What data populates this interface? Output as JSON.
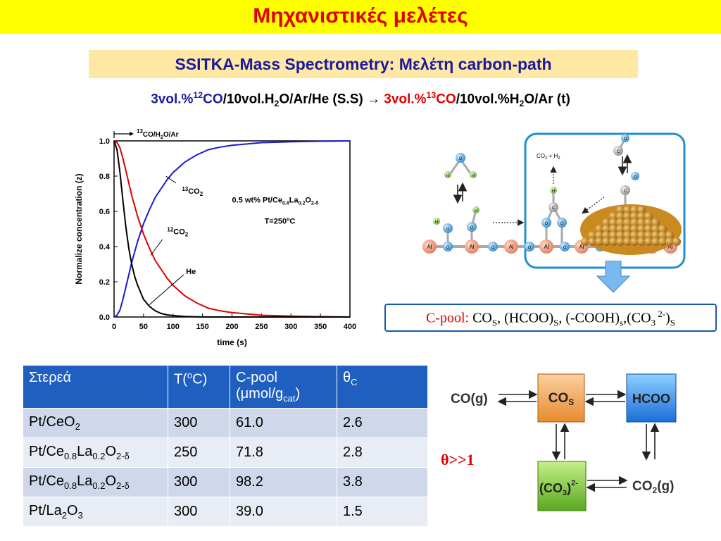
{
  "title": "Μηχανιστικές μελέτες",
  "subtitle": "SSITKA-Mass Spectrometry: Μελέτη carbon-path",
  "conditions": {
    "feed1_prefix": "3vol.%",
    "feed1_iso": "12",
    "feed1_gas": "CO",
    "feed1_rest": "/10vol.H",
    "feed1_h2o_sub": "2",
    "feed1_tail": "O/Ar/He (S.S)",
    "arrow": "→",
    "feed2_prefix": "3vol.%",
    "feed2_iso": "13",
    "feed2_gas": "CO",
    "feed2_rest": "/10vol.%H",
    "feed2_h2o_sub": "2",
    "feed2_tail": "O/Ar (t)"
  },
  "chart_data": {
    "type": "line",
    "switch_label": "CO/H2O/Ar",
    "switch_label_sup": "13",
    "switch_label_text": "CO/H",
    "switch_label_sub": "2",
    "switch_label_tail": "O/Ar",
    "xlabel": "time (s)",
    "ylabel": "Normalize concentration (z)",
    "xlim": [
      0,
      400
    ],
    "ylim": [
      0,
      1
    ],
    "xticks": [
      "0",
      "50",
      "100",
      "150",
      "200",
      "250",
      "300",
      "350",
      "400"
    ],
    "yticks": [
      "0.0",
      "0.2",
      "0.4",
      "0.6",
      "0.8",
      "1.0"
    ],
    "catalyst_label": "0.5 wt% Pt/Ce",
    "catalyst_sub1": "0.8",
    "catalyst_mid": "La",
    "catalyst_sub2": "0.2",
    "catalyst_o": "O",
    "catalyst_sub3": "2-δ",
    "temperature_label": "T=250",
    "temperature_unit": "C",
    "temperature_deg": "o",
    "series": [
      {
        "name": "CO2",
        "label_sup": "13",
        "label_base": "CO",
        "label_sub": "2",
        "color": "#1a1ad0",
        "x": [
          0,
          5,
          10,
          15,
          20,
          30,
          40,
          50,
          60,
          70,
          80,
          90,
          100,
          120,
          140,
          160,
          180,
          200,
          250,
          300,
          350,
          400
        ],
        "y": [
          0,
          0.01,
          0.04,
          0.1,
          0.17,
          0.31,
          0.43,
          0.53,
          0.61,
          0.68,
          0.73,
          0.78,
          0.82,
          0.88,
          0.92,
          0.95,
          0.965,
          0.975,
          0.99,
          0.995,
          0.998,
          1.0
        ]
      },
      {
        "name": "CO2",
        "label_sup": "12",
        "label_base": "CO",
        "label_sub": "2",
        "color": "#e00000",
        "x": [
          0,
          5,
          10,
          15,
          20,
          30,
          40,
          50,
          60,
          70,
          80,
          90,
          100,
          120,
          140,
          160,
          180,
          200,
          250,
          300,
          350,
          400
        ],
        "y": [
          1.0,
          0.99,
          0.96,
          0.9,
          0.83,
          0.69,
          0.57,
          0.47,
          0.39,
          0.32,
          0.27,
          0.22,
          0.18,
          0.12,
          0.08,
          0.05,
          0.035,
          0.025,
          0.01,
          0.005,
          0.002,
          0
        ]
      },
      {
        "name": "He",
        "label_sup": "",
        "label_base": "He",
        "label_sub": "",
        "color": "#000000",
        "x": [
          0,
          5,
          10,
          15,
          20,
          25,
          30,
          35,
          40,
          50,
          60,
          70,
          80,
          90,
          100,
          120,
          140,
          160,
          200,
          250,
          300,
          400
        ],
        "y": [
          1.0,
          0.95,
          0.82,
          0.66,
          0.51,
          0.39,
          0.3,
          0.23,
          0.18,
          0.1,
          0.06,
          0.035,
          0.02,
          0.012,
          0.008,
          0.003,
          0.001,
          0,
          0,
          0,
          0,
          0
        ]
      }
    ]
  },
  "mechanism": {
    "atoms_al": "Al",
    "atoms_o": "O",
    "atoms_h": "H",
    "atoms_c": "C",
    "co2_h2_label": "CO",
    "co2_h2_sub": "2",
    "co2_h2_tail": " + H",
    "co2_h2_sub2": "2"
  },
  "cpool": {
    "label": "C-pool:",
    "text": " CO",
    "s1": "S",
    "t2": ", (HCOO)",
    "s2": "S",
    "t3": ", (-COOH)",
    "s3": "s",
    "t4": ",(CO",
    "s4": "3",
    "sup4": " 2-",
    "t5": ")",
    "s5": "S"
  },
  "table": {
    "headers": [
      "Στερεά",
      "T(",
      "C-pool",
      "θ"
    ],
    "header_t_sup": "o",
    "header_t_tail": "C)",
    "header_cpool_line2": "(μmol/g",
    "header_cpool_sub": "cat",
    "header_cpool_tail": ")",
    "header_theta_sub": "C",
    "rows": [
      {
        "solid": "Pt/CeO",
        "solid_sub": "2",
        "t": "300",
        "cpool": "61.0",
        "theta": "2.6"
      },
      {
        "solid": "Pt/Ce",
        "solid_sub": "0.8",
        "t": "250",
        "cpool": "71.8",
        "theta": "2.8"
      },
      {
        "solid": "Pt/Ce",
        "solid_sub": "0.8",
        "t": "300",
        "cpool": "98.2",
        "theta": "3.8"
      },
      {
        "solid": "Pt/La",
        "solid_sub": "2",
        "t": "300",
        "cpool": "39.0",
        "theta": "1.5"
      }
    ],
    "la_text": "La",
    "la_sub": "0.2",
    "o_text": "O",
    "o_sub": "2-δ",
    "la2o3_o": "O",
    "la2o3_sub": "3"
  },
  "theta_note": "θ>>1",
  "scheme": {
    "co_g": "CO(g)",
    "cos": "CO",
    "cos_sub": "S",
    "hcoo": "HCOO",
    "co3": "(CO",
    "co3_sub": "3",
    "co3_tail": ")",
    "co3_sup": "2-",
    "co2_g": "CO",
    "co2_g_sub": "2",
    "co2_g_tail": "(g)",
    "colors": {
      "cos": "#f2a65a",
      "hcoo": "#3a8ee6",
      "co3": "#7ac143"
    }
  }
}
